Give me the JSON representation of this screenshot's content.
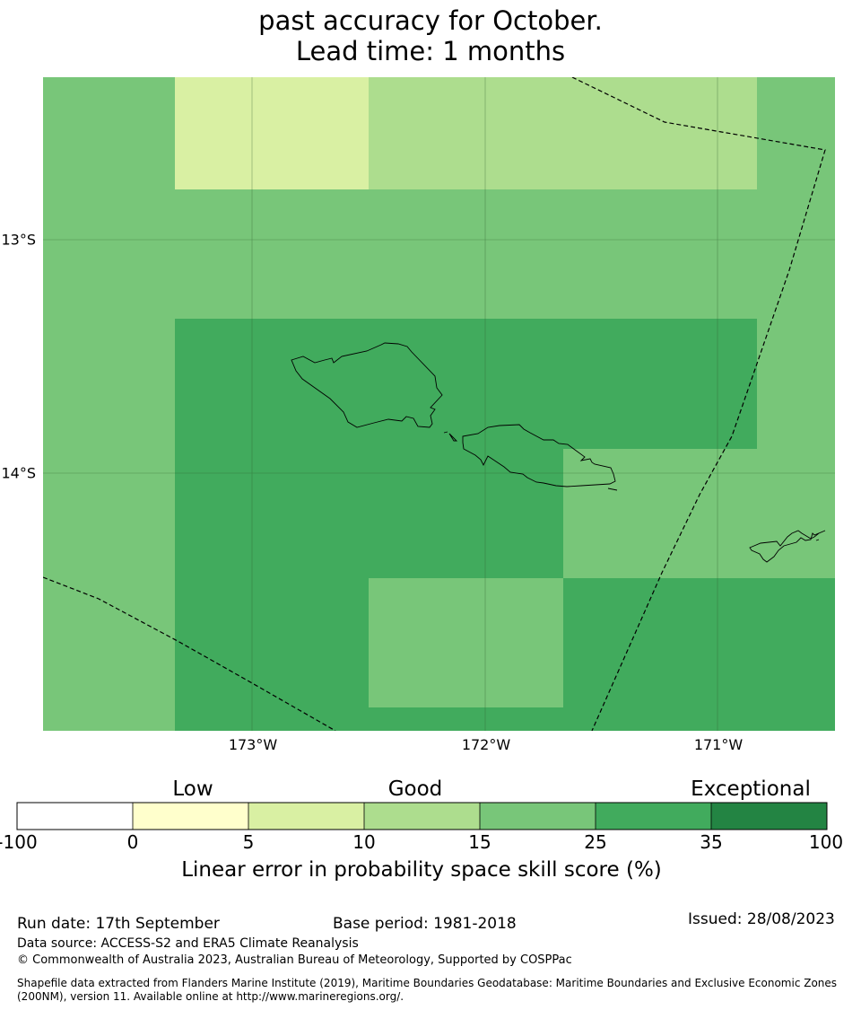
{
  "title": {
    "line1": "past accuracy for October.",
    "line2": "Lead time: 1 months"
  },
  "colors": {
    "white": "#ffffff",
    "pale_yellow": "#ffffcc",
    "yellow_green": "#d9f0a3",
    "light_green": "#addd8e",
    "mid_green": "#78c679",
    "green": "#41ab5d",
    "dark_green": "#238443",
    "ocean_default": "#78c679"
  },
  "map": {
    "lat_labels": [
      "13°S",
      "14°S"
    ],
    "lon_labels": [
      "173°W",
      "172°W",
      "171°W"
    ]
  },
  "colorbar": {
    "categories": [
      "Low",
      "Good",
      "Exceptional"
    ],
    "ticks": [
      "-100",
      "0",
      "5",
      "10",
      "15",
      "25",
      "35",
      "100"
    ],
    "label": "Linear error in probability space skill score (%)"
  },
  "footer": {
    "run_date": "Run date: 17th September",
    "base_period": "Base period: 1981-2018",
    "issued": "Issued: 28/08/2023",
    "data_source": "Data source: ACCESS-S2 and ERA5 Climate Reanalysis",
    "copyright": "© Commonwealth of Australia 2023, Australian Bureau of Meteorology, Supported by COSPPac",
    "shapefile": "Shapefile data extracted from Flanders Marine Institute (2019), Maritime Boundaries Geodatabase: Maritime Boundaries and Exclusive Economic Zones (200NM), version 11. Available online at http://www.marineregions.org/."
  }
}
